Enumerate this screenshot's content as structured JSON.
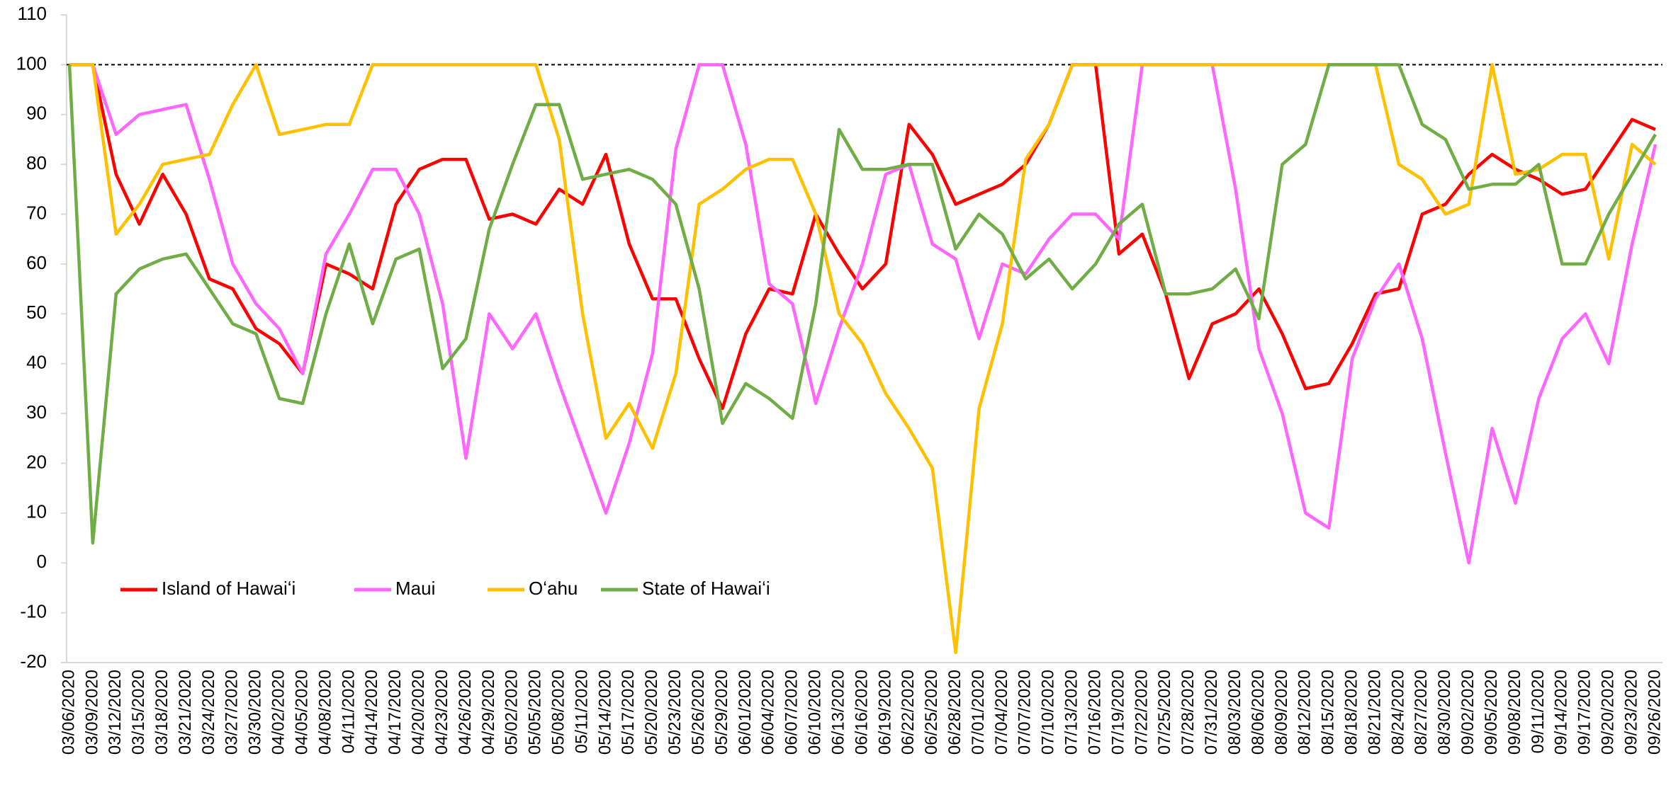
{
  "chart_data": {
    "type": "line",
    "categories": [
      "03/06/2020",
      "03/09/2020",
      "03/12/2020",
      "03/15/2020",
      "03/18/2020",
      "03/21/2020",
      "03/24/2020",
      "03/27/2020",
      "03/30/2020",
      "04/02/2020",
      "04/05/2020",
      "04/08/2020",
      "04/11/2020",
      "04/14/2020",
      "04/17/2020",
      "04/20/2020",
      "04/23/2020",
      "04/26/2020",
      "04/29/2020",
      "05/02/2020",
      "05/05/2020",
      "05/08/2020",
      "05/11/2020",
      "05/14/2020",
      "05/17/2020",
      "05/20/2020",
      "05/23/2020",
      "05/26/2020",
      "05/29/2020",
      "06/01/2020",
      "06/04/2020",
      "06/07/2020",
      "06/10/2020",
      "06/13/2020",
      "06/16/2020",
      "06/19/2020",
      "06/22/2020",
      "06/25/2020",
      "06/28/2020",
      "07/01/2020",
      "07/04/2020",
      "07/07/2020",
      "07/10/2020",
      "07/13/2020",
      "07/16/2020",
      "07/19/2020",
      "07/22/2020",
      "07/25/2020",
      "07/28/2020",
      "07/31/2020",
      "08/03/2020",
      "08/06/2020",
      "08/09/2020",
      "08/12/2020",
      "08/15/2020",
      "08/18/2020",
      "08/21/2020",
      "08/24/2020",
      "08/27/2020",
      "08/30/2020",
      "09/02/2020",
      "09/05/2020",
      "09/08/2020",
      "09/11/2020",
      "09/14/2020",
      "09/17/2020",
      "09/20/2020",
      "09/23/2020",
      "09/26/2020"
    ],
    "series": [
      {
        "name": "Island of Hawaiʻi",
        "color": "#ff0000",
        "values": [
          100,
          100,
          78,
          68,
          78,
          70,
          57,
          55,
          47,
          44,
          38,
          60,
          58,
          55,
          72,
          79,
          81,
          81,
          69,
          70,
          68,
          75,
          72,
          82,
          64,
          53,
          53,
          41,
          31,
          46,
          55,
          54,
          70,
          62,
          55,
          60,
          88,
          82,
          72,
          74,
          76,
          80,
          88,
          100,
          100,
          62,
          66,
          54,
          37,
          48,
          50,
          55,
          46,
          35,
          36,
          44,
          54,
          55,
          70,
          72,
          78,
          82,
          79,
          77,
          74,
          75,
          82,
          89,
          87
        ]
      },
      {
        "name": "Maui",
        "color": "#ff66ff",
        "values": [
          100,
          100,
          86,
          90,
          91,
          92,
          77,
          60,
          52,
          47,
          38,
          62,
          70,
          79,
          79,
          70,
          52,
          21,
          50,
          43,
          50,
          36,
          23,
          10,
          24,
          42,
          83,
          100,
          100,
          84,
          56,
          52,
          32,
          47,
          60,
          78,
          80,
          64,
          61,
          45,
          60,
          58,
          65,
          70,
          70,
          65,
          100,
          100,
          100,
          100,
          75,
          43,
          30,
          10,
          7,
          41,
          53,
          60,
          45,
          22,
          0,
          27,
          12,
          33,
          45,
          50,
          40,
          64,
          84
        ]
      },
      {
        "name": "Oʻahu",
        "color": "#ffc000",
        "values": [
          100,
          100,
          66,
          72,
          80,
          81,
          82,
          92,
          100,
          86,
          87,
          88,
          88,
          100,
          100,
          100,
          100,
          100,
          100,
          100,
          100,
          85,
          50,
          25,
          32,
          23,
          38,
          72,
          75,
          79,
          81,
          81,
          70,
          50,
          44,
          34,
          27,
          19,
          -18,
          31,
          48,
          81,
          88,
          100,
          100,
          100,
          100,
          100,
          100,
          100,
          100,
          100,
          100,
          100,
          100,
          100,
          100,
          80,
          77,
          70,
          72,
          100,
          78,
          79,
          82,
          82,
          61,
          84,
          80
        ]
      },
      {
        "name": "State of Hawaiʻi",
        "color": "#70ad47",
        "values": [
          100,
          4,
          54,
          59,
          61,
          62,
          55,
          48,
          46,
          33,
          32,
          50,
          64,
          48,
          61,
          63,
          39,
          45,
          67,
          80,
          92,
          92,
          77,
          78,
          79,
          77,
          72,
          55,
          28,
          36,
          33,
          29,
          52,
          87,
          79,
          79,
          80,
          80,
          63,
          70,
          66,
          57,
          61,
          55,
          60,
          68,
          72,
          54,
          54,
          55,
          59,
          49,
          80,
          84,
          100,
          100,
          100,
          100,
          88,
          85,
          75,
          76,
          76,
          80,
          60,
          60,
          70,
          78,
          86
        ]
      }
    ],
    "ylim": [
      -20,
      110
    ],
    "yticks": [
      -20,
      -10,
      0,
      10,
      20,
      30,
      40,
      50,
      60,
      70,
      80,
      90,
      100,
      110
    ],
    "reference_line": 100,
    "legend": "lower-left",
    "grid": false
  }
}
